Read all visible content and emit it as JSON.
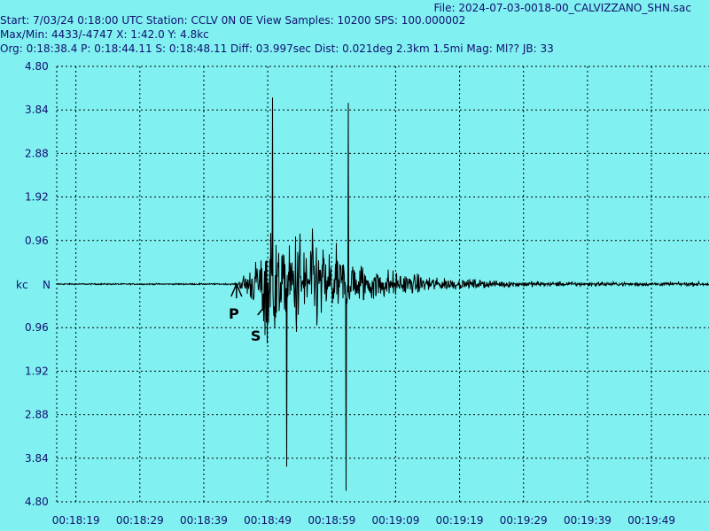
{
  "header": {
    "file": "File: 2024-07-03-0018-00_CALVIZZANO_SHN.sac",
    "line1": "Start: 7/03/24  0:18:00 UTC Station: CCLV 0N 0E View Samples: 10200  SPS: 100.000002",
    "line2": "Max/Min: 4433/-4747 X: 1:42.0 Y: 4.8kc",
    "line3": "Org: 0:18:38.4 P: 0:18:44.11  S: 0:18:48.11  Diff: 03.997sec Dist: 0.021deg 2.3km 1.5mi  Mag: Ml?? JB: 33"
  },
  "colors": {
    "background": "#80f0f0",
    "trace": "#000000",
    "text": "#101070",
    "grid": "#000000"
  },
  "chart_data": {
    "type": "line",
    "grid": true,
    "units_label": "kc",
    "zero_label": "N",
    "ylim": [
      -4.8,
      4.8
    ],
    "y_ticks": [
      "4.80",
      "3.84",
      "2.88",
      "1.92",
      "0.96",
      "0.96",
      "1.92",
      "2.88",
      "3.84",
      "4.80"
    ],
    "x_ticks": [
      "00:18:19",
      "00:18:29",
      "00:18:39",
      "00:18:49",
      "00:18:59",
      "00:19:09",
      "00:19:19",
      "00:19:29",
      "00:19:39",
      "00:19:49"
    ],
    "x_range_seconds": [
      1096,
      1198
    ],
    "picks": [
      {
        "label": "P",
        "time_s": 1124.11
      },
      {
        "label": "S",
        "time_s": 1128.11
      }
    ],
    "max_count": 4433,
    "min_count": -4747
  }
}
